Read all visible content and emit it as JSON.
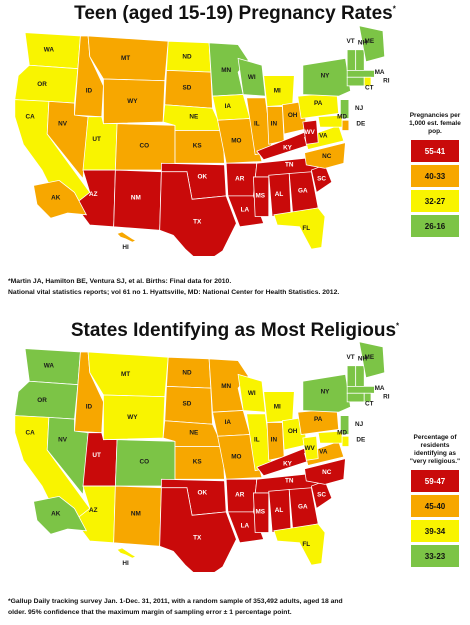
{
  "colors": {
    "red": "#c90a0a",
    "orange": "#f7a700",
    "yellow": "#f9f400",
    "green": "#7cc446"
  },
  "map1": {
    "title": "Teen (aged 15-19) Pregnancy Rates",
    "title_mark": "*",
    "legend_title": "Pregnancies per 1,000 est. female pop.",
    "legend": [
      {
        "label": "55-41",
        "color": "red"
      },
      {
        "label": "40-33",
        "color": "orange"
      },
      {
        "label": "32-27",
        "color": "yellow"
      },
      {
        "label": "26-16",
        "color": "green"
      }
    ],
    "states": {
      "WA": "yellow",
      "OR": "yellow",
      "CA": "yellow",
      "ID": "orange",
      "NV": "orange",
      "UT": "yellow",
      "AZ": "red",
      "MT": "orange",
      "WY": "orange",
      "CO": "orange",
      "NM": "red",
      "ND": "yellow",
      "SD": "orange",
      "NE": "yellow",
      "KS": "orange",
      "OK": "red",
      "TX": "red",
      "MN": "green",
      "IA": "yellow",
      "MO": "orange",
      "AR": "red",
      "LA": "red",
      "WI": "green",
      "IL": "orange",
      "MI": "yellow",
      "IN": "orange",
      "OH": "orange",
      "KY": "red",
      "TN": "red",
      "MS": "red",
      "AL": "red",
      "GA": "red",
      "FL": "yellow",
      "SC": "red",
      "NC": "orange",
      "VA": "yellow",
      "WV": "red",
      "PA": "yellow",
      "NY": "green",
      "VT": "green",
      "NH": "green",
      "ME": "green",
      "MA": "green",
      "CT": "green",
      "RI": "yellow",
      "NJ": "green",
      "DE": "orange",
      "MD": "yellow",
      "AK": "orange",
      "HI": "orange"
    },
    "footnote": [
      "*Martin JA, Hamilton BE, Ventura SJ, et al. Births: Final data for 2010.",
      "National vital statistics reports; vol 61 no 1. Hyattsville, MD: National Center for Health Statistics. 2012."
    ]
  },
  "map2": {
    "title": "States Identifying as Most Religious",
    "title_mark": "*",
    "legend_title": "Percentage of residents identifying as \"very religious.\"",
    "legend": [
      {
        "label": "59-47",
        "color": "red"
      },
      {
        "label": "45-40",
        "color": "orange"
      },
      {
        "label": "39-34",
        "color": "yellow"
      },
      {
        "label": "33-23",
        "color": "green"
      }
    ],
    "states": {
      "WA": "green",
      "OR": "green",
      "CA": "yellow",
      "ID": "orange",
      "NV": "green",
      "UT": "red",
      "AZ": "yellow",
      "MT": "yellow",
      "WY": "yellow",
      "CO": "green",
      "NM": "orange",
      "ND": "orange",
      "SD": "orange",
      "NE": "orange",
      "KS": "orange",
      "OK": "red",
      "TX": "red",
      "MN": "orange",
      "IA": "orange",
      "MO": "orange",
      "AR": "red",
      "LA": "red",
      "WI": "yellow",
      "IL": "yellow",
      "MI": "yellow",
      "IN": "orange",
      "OH": "yellow",
      "KY": "red",
      "TN": "red",
      "MS": "red",
      "AL": "red",
      "GA": "red",
      "FL": "yellow",
      "SC": "red",
      "NC": "red",
      "VA": "orange",
      "WV": "yellow",
      "PA": "orange",
      "NY": "green",
      "VT": "green",
      "NH": "green",
      "ME": "green",
      "MA": "green",
      "CT": "green",
      "RI": "green",
      "NJ": "green",
      "DE": "yellow",
      "MD": "yellow",
      "AK": "green",
      "HI": "yellow"
    },
    "footnote": [
      "*Gallup Daily tracking survey Jan. 1-Dec. 31, 2011, with a random sample of 353,492 adults, aged 18 and",
      "older.  95% confidence that the maximum margin of sampling error ± 1 percentage point."
    ]
  }
}
